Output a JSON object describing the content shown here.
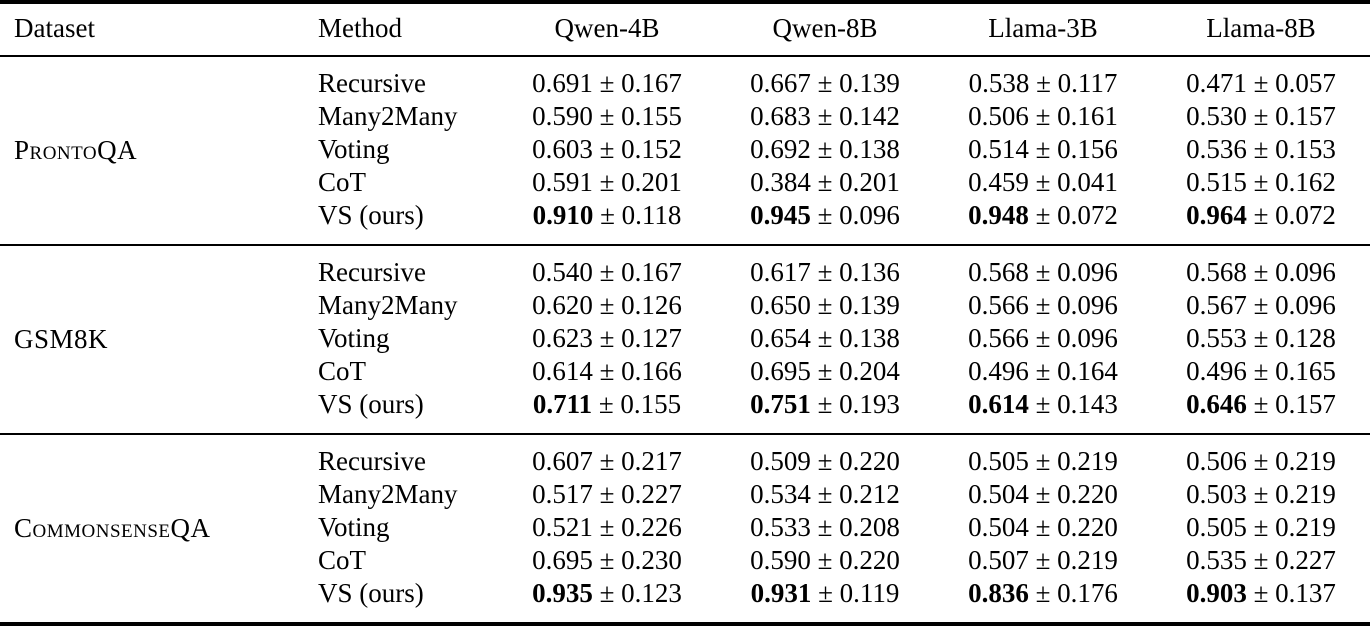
{
  "table": {
    "plus_minus": "±",
    "columns": [
      "Dataset",
      "Method",
      "Qwen-4B",
      "Qwen-8B",
      "Llama-3B",
      "Llama-8B"
    ],
    "groups": [
      {
        "dataset": "ProntoQA",
        "rows": [
          {
            "method": "Recursive",
            "bold": false,
            "values": [
              {
                "mean": "0.691",
                "std": "0.167"
              },
              {
                "mean": "0.667",
                "std": "0.139"
              },
              {
                "mean": "0.538",
                "std": "0.117"
              },
              {
                "mean": "0.471",
                "std": "0.057"
              }
            ]
          },
          {
            "method": "Many2Many",
            "bold": false,
            "values": [
              {
                "mean": "0.590",
                "std": "0.155"
              },
              {
                "mean": "0.683",
                "std": "0.142"
              },
              {
                "mean": "0.506",
                "std": "0.161"
              },
              {
                "mean": "0.530",
                "std": "0.157"
              }
            ]
          },
          {
            "method": "Voting",
            "bold": false,
            "values": [
              {
                "mean": "0.603",
                "std": "0.152"
              },
              {
                "mean": "0.692",
                "std": "0.138"
              },
              {
                "mean": "0.514",
                "std": "0.156"
              },
              {
                "mean": "0.536",
                "std": "0.153"
              }
            ]
          },
          {
            "method": "CoT",
            "bold": false,
            "values": [
              {
                "mean": "0.591",
                "std": "0.201"
              },
              {
                "mean": "0.384",
                "std": "0.201"
              },
              {
                "mean": "0.459",
                "std": "0.041"
              },
              {
                "mean": "0.515",
                "std": "0.162"
              }
            ]
          },
          {
            "method": "VS (ours)",
            "bold": true,
            "values": [
              {
                "mean": "0.910",
                "std": "0.118"
              },
              {
                "mean": "0.945",
                "std": "0.096"
              },
              {
                "mean": "0.948",
                "std": "0.072"
              },
              {
                "mean": "0.964",
                "std": "0.072"
              }
            ]
          }
        ]
      },
      {
        "dataset": "GSM8K",
        "rows": [
          {
            "method": "Recursive",
            "bold": false,
            "values": [
              {
                "mean": "0.540",
                "std": "0.167"
              },
              {
                "mean": "0.617",
                "std": "0.136"
              },
              {
                "mean": "0.568",
                "std": "0.096"
              },
              {
                "mean": "0.568",
                "std": "0.096"
              }
            ]
          },
          {
            "method": "Many2Many",
            "bold": false,
            "values": [
              {
                "mean": "0.620",
                "std": "0.126"
              },
              {
                "mean": "0.650",
                "std": "0.139"
              },
              {
                "mean": "0.566",
                "std": "0.096"
              },
              {
                "mean": "0.567",
                "std": "0.096"
              }
            ]
          },
          {
            "method": "Voting",
            "bold": false,
            "values": [
              {
                "mean": "0.623",
                "std": "0.127"
              },
              {
                "mean": "0.654",
                "std": "0.138"
              },
              {
                "mean": "0.566",
                "std": "0.096"
              },
              {
                "mean": "0.553",
                "std": "0.128"
              }
            ]
          },
          {
            "method": "CoT",
            "bold": false,
            "values": [
              {
                "mean": "0.614",
                "std": "0.166"
              },
              {
                "mean": "0.695",
                "std": "0.204"
              },
              {
                "mean": "0.496",
                "std": "0.164"
              },
              {
                "mean": "0.496",
                "std": "0.165"
              }
            ]
          },
          {
            "method": "VS (ours)",
            "bold": true,
            "values": [
              {
                "mean": "0.711",
                "std": "0.155"
              },
              {
                "mean": "0.751",
                "std": "0.193"
              },
              {
                "mean": "0.614",
                "std": "0.143"
              },
              {
                "mean": "0.646",
                "std": "0.157"
              }
            ]
          }
        ]
      },
      {
        "dataset": "CommonsenseQA",
        "rows": [
          {
            "method": "Recursive",
            "bold": false,
            "values": [
              {
                "mean": "0.607",
                "std": "0.217"
              },
              {
                "mean": "0.509",
                "std": "0.220"
              },
              {
                "mean": "0.505",
                "std": "0.219"
              },
              {
                "mean": "0.506",
                "std": "0.219"
              }
            ]
          },
          {
            "method": "Many2Many",
            "bold": false,
            "values": [
              {
                "mean": "0.517",
                "std": "0.227"
              },
              {
                "mean": "0.534",
                "std": "0.212"
              },
              {
                "mean": "0.504",
                "std": "0.220"
              },
              {
                "mean": "0.503",
                "std": "0.219"
              }
            ]
          },
          {
            "method": "Voting",
            "bold": false,
            "values": [
              {
                "mean": "0.521",
                "std": "0.226"
              },
              {
                "mean": "0.533",
                "std": "0.208"
              },
              {
                "mean": "0.504",
                "std": "0.220"
              },
              {
                "mean": "0.505",
                "std": "0.219"
              }
            ]
          },
          {
            "method": "CoT",
            "bold": false,
            "values": [
              {
                "mean": "0.695",
                "std": "0.230"
              },
              {
                "mean": "0.590",
                "std": "0.220"
              },
              {
                "mean": "0.507",
                "std": "0.219"
              },
              {
                "mean": "0.535",
                "std": "0.227"
              }
            ]
          },
          {
            "method": "VS (ours)",
            "bold": true,
            "values": [
              {
                "mean": "0.935",
                "std": "0.123"
              },
              {
                "mean": "0.931",
                "std": "0.119"
              },
              {
                "mean": "0.836",
                "std": "0.176"
              },
              {
                "mean": "0.903",
                "std": "0.137"
              }
            ]
          }
        ]
      }
    ],
    "colors": {
      "text": "#000000",
      "background": "#ffffff",
      "rule": "#000000"
    }
  }
}
